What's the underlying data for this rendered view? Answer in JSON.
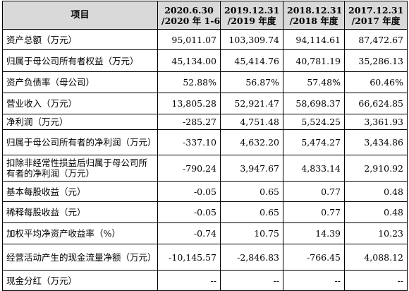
{
  "table": {
    "item_header": "项目",
    "period_headers": [
      {
        "line1": "2020.6.30",
        "line2": "/2020 年 1-6 月"
      },
      {
        "line1": "2019.12.31",
        "line2": "/2019 年度"
      },
      {
        "line1": "2018.12.31",
        "line2": "/2018 年度"
      },
      {
        "line1": "2017.12.31",
        "line2": "/2017 年度"
      }
    ],
    "rows": [
      {
        "label": "资产总额（万元）",
        "values": [
          "95,011.07",
          "103,309.74",
          "94,114.61",
          "87,472.67"
        ]
      },
      {
        "label": "归属于母公司所有者权益（万元）",
        "values": [
          "45,134.00",
          "45,414.76",
          "40,781.19",
          "35,286.13"
        ]
      },
      {
        "label": "资产负债率（母公司）",
        "values": [
          "52.88%",
          "56.87%",
          "57.48%",
          "60.46%"
        ]
      },
      {
        "label": "营业收入（万元）",
        "values": [
          "13,805.28",
          "52,921.47",
          "58,698.37",
          "66,624.85"
        ]
      },
      {
        "label": "净利润（万元）",
        "values": [
          "-285.27",
          "4,751.48",
          "5,524.25",
          "3,361.93"
        ]
      },
      {
        "label": "归属于母公司所有者的净利润（万元）",
        "values": [
          "-337.10",
          "4,632.20",
          "5,474.27",
          "3,434.86"
        ]
      },
      {
        "label": "扣除非经常性损益后归属于母公司所有者的净利润（万元）",
        "values": [
          "-790.24",
          "3,947.67",
          "4,833.14",
          "2,910.92"
        ]
      },
      {
        "label": "基本每股收益（元）",
        "values": [
          "-0.05",
          "0.65",
          "0.77",
          "0.48"
        ]
      },
      {
        "label": "稀释每股收益（元）",
        "values": [
          "-0.05",
          "0.65",
          "0.77",
          "0.48"
        ]
      },
      {
        "label": "加权平均净资产收益率（%）",
        "values": [
          "-0.74",
          "10.75",
          "14.39",
          "10.23"
        ]
      },
      {
        "label": "经营活动产生的现金流量净额（万元）",
        "values": [
          "-10,145.57",
          "-2,846.83",
          "-766.45",
          "4,088.12"
        ]
      },
      {
        "label": "现金分红（万元）",
        "values": [
          "--",
          "--",
          "--",
          "--"
        ]
      }
    ]
  }
}
